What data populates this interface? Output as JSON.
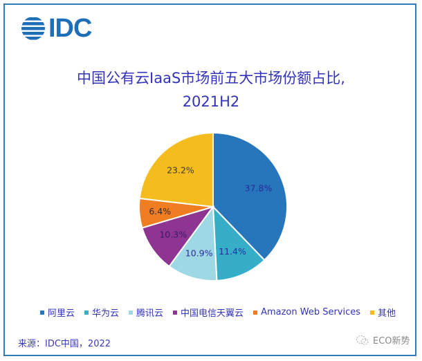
{
  "logo": {
    "text": "IDC",
    "color": "#1f6fb8"
  },
  "title": {
    "line1": "中国公有云IaaS市场前五大市场份额占比,",
    "line2": "2021H2"
  },
  "chart_data": {
    "type": "pie",
    "title": "中国公有云IaaS市场前五大市场份额占比, 2021H2",
    "categories": [
      "阿里云",
      "华为云",
      "腾讯云",
      "中国电信天翼云",
      "Amazon Web Services",
      "其他"
    ],
    "values": [
      37.8,
      11.4,
      10.9,
      10.3,
      6.4,
      23.2
    ],
    "labels": [
      "37.8%",
      "11.4%",
      "10.9%",
      "10.3%",
      "6.4%",
      "23.2%"
    ],
    "colors": [
      "#2776bc",
      "#36aec8",
      "#9fd8e5",
      "#8e3592",
      "#ef7d22",
      "#f4bc1c"
    ],
    "start_angle_deg": 0,
    "direction": "clockwise",
    "legend_position": "bottom",
    "source": "来源：IDC中国，2022"
  },
  "legend": [
    {
      "label": "阿里云",
      "color": "#2776bc"
    },
    {
      "label": "华为云",
      "color": "#36aec8"
    },
    {
      "label": "腾讯云",
      "color": "#9fd8e5"
    },
    {
      "label": "中国电信天翼云",
      "color": "#8e3592"
    },
    {
      "label": "Amazon Web Services",
      "color": "#ef7d22"
    },
    {
      "label": "其他",
      "color": "#f4bc1c"
    }
  ],
  "footer": {
    "source": "来源：IDC中国，2022",
    "watermark": "ECO新势"
  }
}
